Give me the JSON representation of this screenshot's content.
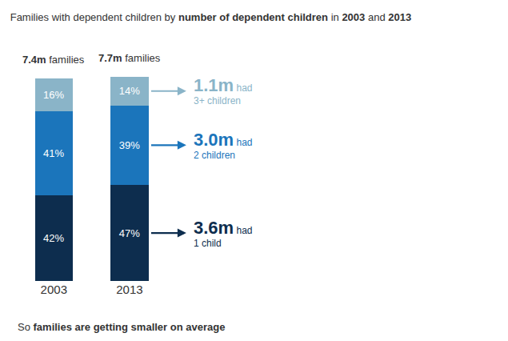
{
  "chart_data": {
    "type": "bar",
    "stacked": true,
    "title": "Families with dependent children by number of dependent children in 2003 and 2013",
    "title_bold": [
      "number of dependent children",
      "2003",
      "2013"
    ],
    "categories": [
      "2003",
      "2013"
    ],
    "series": [
      {
        "color": "#0d2d4e",
        "values": [
          42,
          47
        ],
        "value_labels": [
          "42%",
          "47%"
        ]
      },
      {
        "color": "#1b75bb",
        "values": [
          41,
          39
        ],
        "value_labels": [
          "41%",
          "39%"
        ]
      },
      {
        "color": "#8ab4c8",
        "values": [
          16,
          14
        ],
        "value_labels": [
          "16%",
          "14%"
        ]
      }
    ],
    "data_labels": true,
    "ylim": [
      0,
      118
    ],
    "tick_labels": "x",
    "grid": false,
    "total_labels": [
      "7.4m",
      "7.7m"
    ],
    "total_note": "families",
    "annotations": [
      {
        "label": "3.6m",
        "text": "had",
        "sub": "1 child"
      },
      {
        "label": "3.0m",
        "text": "had",
        "sub": "2 children"
      },
      {
        "label": "1.1m",
        "text": "had",
        "sub": "3+ children"
      }
    ],
    "note": "So families are getting smaller on average",
    "note_bold": "families are getting smaller on average"
  }
}
